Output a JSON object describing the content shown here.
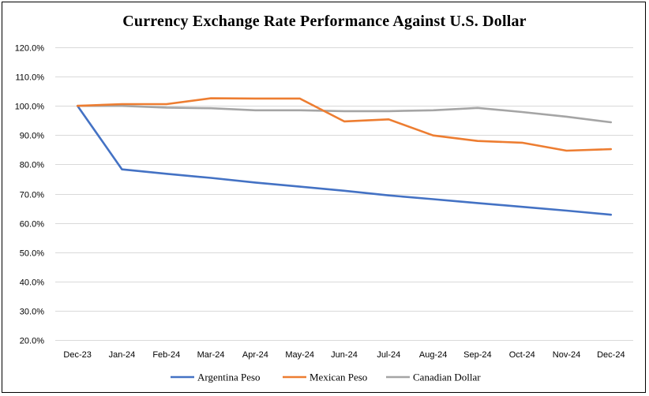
{
  "chart_data": {
    "type": "line",
    "title": "Currency Exchange Rate Performance Against U.S. Dollar",
    "xlabel": "",
    "ylabel": "",
    "categories": [
      "Dec-23",
      "Jan-24",
      "Feb-24",
      "Mar-24",
      "Apr-24",
      "May-24",
      "Jun-24",
      "Jul-24",
      "Aug-24",
      "Sep-24",
      "Oct-24",
      "Nov-24",
      "Dec-24"
    ],
    "y_ticks": [
      "20.0%",
      "30.0%",
      "40.0%",
      "50.0%",
      "60.0%",
      "70.0%",
      "80.0%",
      "90.0%",
      "100.0%",
      "110.0%",
      "120.0%"
    ],
    "ylim": [
      20,
      120
    ],
    "grid": true,
    "legend_position": "bottom",
    "series": [
      {
        "name": "Argentina Peso",
        "color": "#4472C4",
        "values": [
          100.0,
          78.3,
          76.8,
          75.4,
          73.8,
          72.4,
          71.0,
          69.4,
          68.1,
          66.8,
          65.5,
          64.2,
          62.8
        ]
      },
      {
        "name": "Mexican Peso",
        "color": "#ED7D31",
        "values": [
          100.0,
          100.6,
          100.6,
          102.6,
          102.5,
          102.5,
          94.7,
          95.4,
          89.9,
          88.0,
          87.4,
          84.7,
          85.2
        ]
      },
      {
        "name": "Canadian Dollar",
        "color": "#A5A5A5",
        "values": [
          100.0,
          100.0,
          99.4,
          99.2,
          98.5,
          98.5,
          98.2,
          98.2,
          98.5,
          99.3,
          97.9,
          96.3,
          94.4
        ]
      }
    ]
  }
}
